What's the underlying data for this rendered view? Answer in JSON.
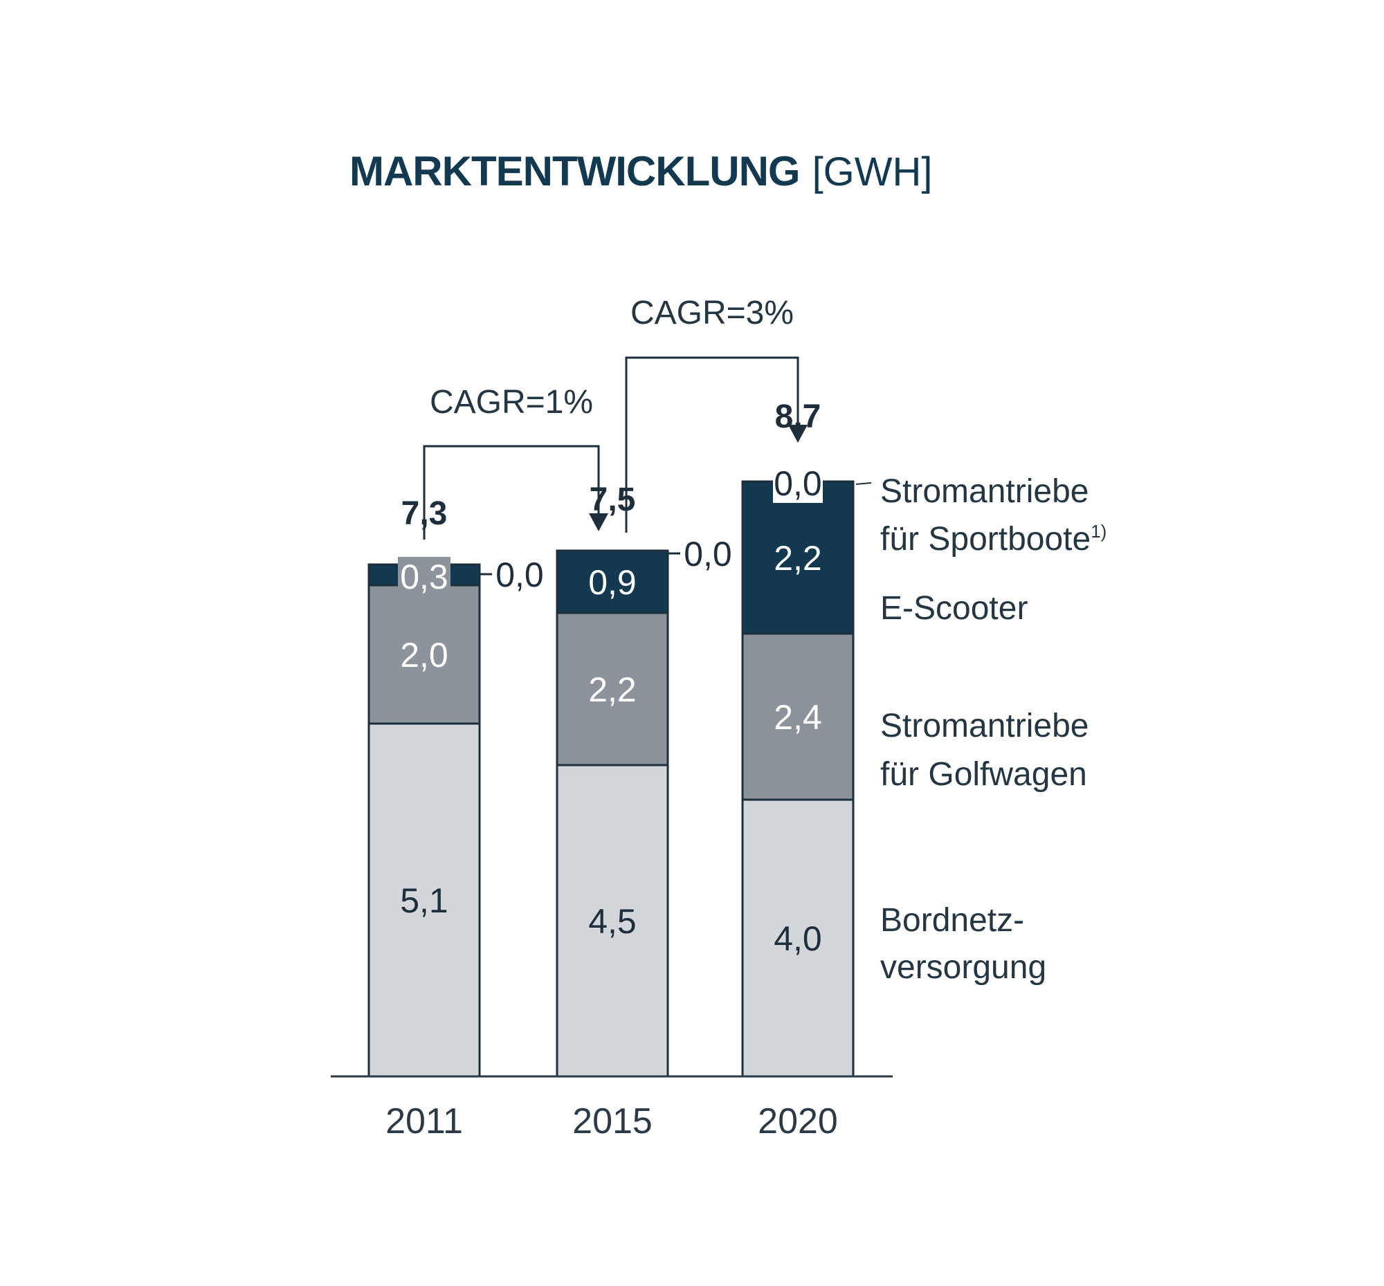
{
  "chart_data": {
    "type": "bar",
    "stacked": true,
    "title": "MARKTENTWICKLUNG",
    "unit": "[GWH]",
    "categories": [
      "2011",
      "2015",
      "2020"
    ],
    "series": [
      {
        "name": "Bordnetz-versorgung",
        "legend_lines": [
          "Bordnetz-",
          "versorgung"
        ],
        "values": [
          5.1,
          4.5,
          4.0
        ],
        "labels": [
          "5,1",
          "4,5",
          "4,0"
        ],
        "color": "#d3d6da",
        "label_color": "#1e2f3b"
      },
      {
        "name": "Stromantriebe für Golfwagen",
        "legend_lines": [
          "Stromantriebe",
          "für Golfwagen"
        ],
        "values": [
          2.0,
          2.2,
          2.4
        ],
        "labels": [
          "2,0",
          "2,2",
          "2,4"
        ],
        "color": "#8c939a",
        "label_color": "#ffffff"
      },
      {
        "name": "E-Scooter",
        "legend_lines": [
          "E-Scooter"
        ],
        "values": [
          0.3,
          0.9,
          2.2
        ],
        "labels": [
          "0,3",
          "0,9",
          "2,2"
        ],
        "color": "#12394f",
        "label_color": "#ffffff"
      },
      {
        "name": "Stromantriebe für Sportboote",
        "legend_lines": [
          "Stromantriebe",
          "für Sportboote"
        ],
        "footnote": "1)",
        "values": [
          0.0,
          0.0,
          0.0
        ],
        "labels": [
          "0,0",
          "0,0",
          "0,0"
        ],
        "color": "#12394f"
      }
    ],
    "totals": [
      "7,3",
      "7,5",
      "8,7"
    ],
    "total_values": [
      7.3,
      7.5,
      8.7
    ],
    "annotations": [
      {
        "text": "CAGR=1%",
        "from": "2011",
        "to": "2015"
      },
      {
        "text": "CAGR=3%",
        "from": "2015",
        "to": "2020"
      }
    ],
    "ylim": [
      0,
      8.7
    ],
    "grid": false,
    "legend_position": "right"
  },
  "colors": {
    "dark": "#12394f",
    "mid": "#8c939a",
    "light": "#d3d6da",
    "stroke": "#1e2f3b"
  }
}
